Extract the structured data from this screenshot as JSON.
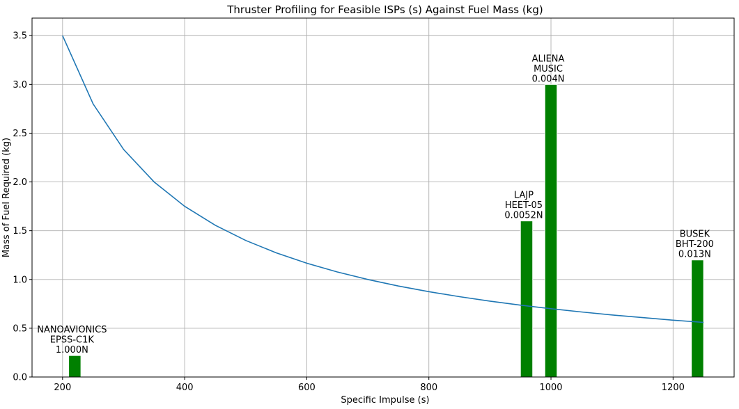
{
  "chart_data": {
    "type": "bar",
    "title": "Thruster Profiling for Feasible ISPs (s) Against Fuel Mass (kg)",
    "xlabel": "Specific Impulse (s)",
    "ylabel": "Mass of Fuel Required (kg)",
    "xlim": [
      150,
      1300
    ],
    "ylim": [
      0.0,
      3.68
    ],
    "xticks": [
      200,
      400,
      600,
      800,
      1000,
      1200
    ],
    "yticks": [
      "0.0",
      "0.5",
      "1.0",
      "1.5",
      "2.0",
      "2.5",
      "3.0",
      "3.5"
    ],
    "grid": true,
    "bar_color": "#008000",
    "line_color": "#1f77b4",
    "bars": [
      {
        "x": 220,
        "value": 0.22,
        "label": [
          "NANOAVIONICS",
          "EPSS-C1K",
          "1.000N"
        ]
      },
      {
        "x": 960,
        "value": 1.6,
        "label": [
          "LAJP",
          "HEET-05",
          "0.0052N"
        ]
      },
      {
        "x": 1000,
        "value": 3.0,
        "label": [
          "ALIENA",
          "MUSIC",
          "0.004N"
        ]
      },
      {
        "x": 1240,
        "value": 1.2,
        "label": [
          "BUSEK",
          "BHT-200",
          "0.013N"
        ]
      }
    ],
    "curve": {
      "x": [
        200,
        250,
        300,
        350,
        400,
        450,
        500,
        550,
        600,
        650,
        700,
        750,
        800,
        850,
        900,
        950,
        1000,
        1050,
        1100,
        1150,
        1200,
        1250
      ],
      "y": [
        3.5,
        2.8,
        2.333,
        2.0,
        1.75,
        1.556,
        1.4,
        1.273,
        1.167,
        1.077,
        1.0,
        0.933,
        0.875,
        0.824,
        0.778,
        0.737,
        0.7,
        0.667,
        0.636,
        0.609,
        0.583,
        0.56
      ]
    }
  }
}
